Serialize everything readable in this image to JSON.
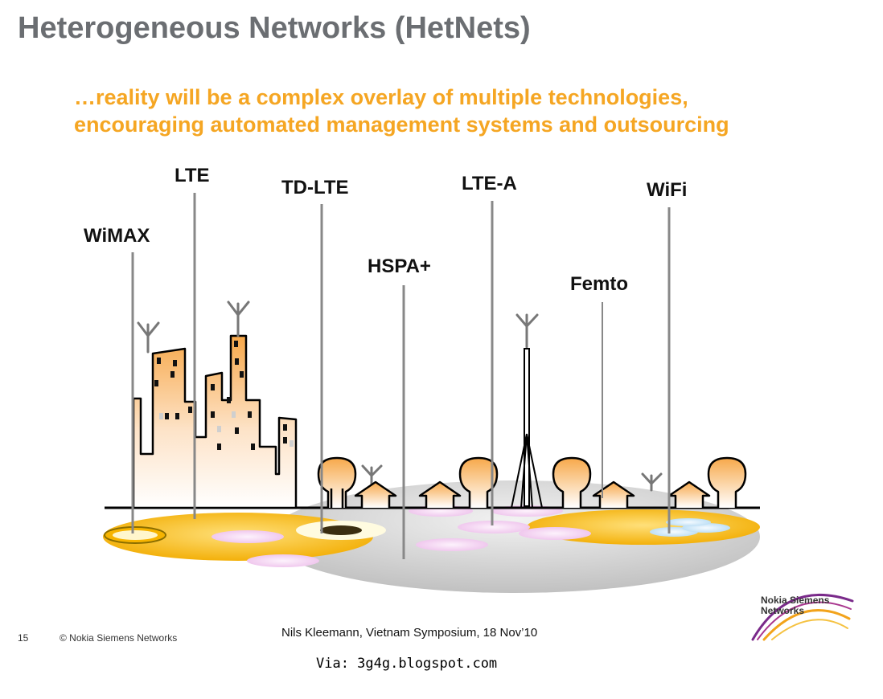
{
  "slide": {
    "title": "Heterogeneous Networks (HetNets)",
    "subtitle_line1": "…reality will be a complex overlay of multiple technologies,",
    "subtitle_line2": "encouraging automated management systems and outsourcing"
  },
  "technologies": {
    "wimax": "WiMAX",
    "lte": "LTE",
    "tdlte": "TD-LTE",
    "hspa": "HSPA+",
    "ltea": "LTE-A",
    "femto": "Femto",
    "wifi": "WiFi"
  },
  "footer": {
    "page_number": "15",
    "copyright": "© Nokia Siemens Networks",
    "presenter": "Nils Kleemann, Vietnam Symposium, 18 Nov’10",
    "via": "Via: 3g4g.blogspot.com"
  },
  "logo": {
    "line1": "Nokia Siemens",
    "line2": "Networks"
  },
  "colors": {
    "title": "#6b6e72",
    "subtitle": "#f5a623",
    "coverage_yellow": "#f5b400",
    "ground_gray": "#c8c8c8"
  }
}
